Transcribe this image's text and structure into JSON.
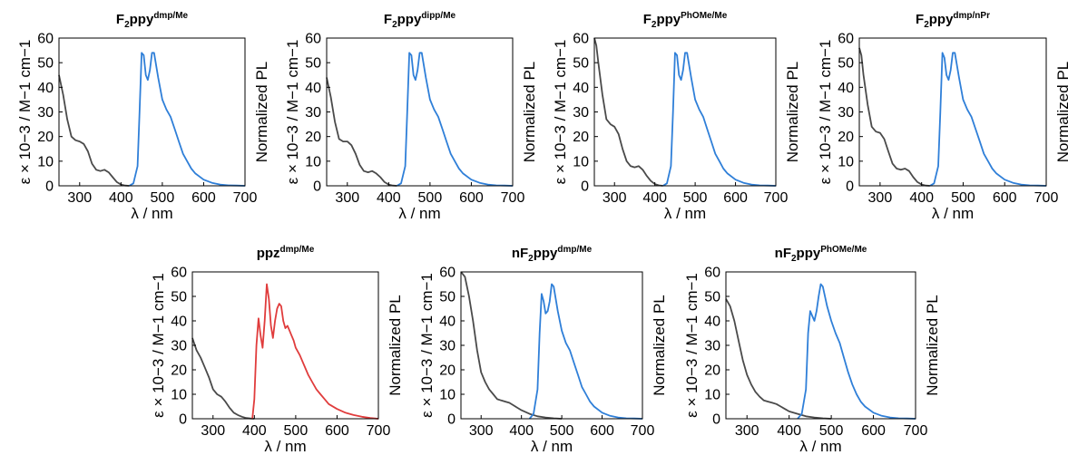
{
  "figure": {
    "x_ticks": [
      "300",
      "400",
      "500",
      "600",
      "700"
    ],
    "y_ticks": [
      "0",
      "10",
      "20",
      "30",
      "40",
      "50",
      "60"
    ],
    "xlabel": "λ / nm",
    "ylabel_left": "ε × 10−3 / M−1 cm−1",
    "ylabel_right": "Normalized PL"
  },
  "chart_data": [
    {
      "type": "line",
      "title": "F2ppydmp/Me",
      "title_parts": {
        "base": "F",
        "sub": "2",
        "mid": "ppy",
        "sup": "dmp/Me"
      },
      "xlabel": "λ / nm",
      "ylabel": "ε × 10−3 / M−1 cm−1",
      "ylabel_right": "Normalized PL",
      "xlim": [
        250,
        700
      ],
      "ylim": [
        0,
        60
      ],
      "x_ticks": [
        300,
        400,
        500,
        600,
        700
      ],
      "y_ticks": [
        0,
        10,
        20,
        30,
        40,
        50,
        60
      ],
      "colors": {
        "absorption": "#4a4a4a",
        "emission": "#2f7fd8"
      },
      "series": [
        {
          "x": [
            250,
            260,
            270,
            280,
            290,
            300,
            310,
            320,
            330,
            340,
            350,
            360,
            370,
            380,
            390,
            400,
            410,
            420
          ],
          "y": [
            45,
            37,
            27,
            20,
            18.5,
            18,
            17,
            14,
            9,
            6.5,
            6,
            6.5,
            5.5,
            3.5,
            1.5,
            0.5,
            0.1,
            0
          ]
        },
        {
          "x": [
            420,
            430,
            440,
            445,
            450,
            455,
            460,
            465,
            470,
            475,
            480,
            490,
            500,
            510,
            520,
            530,
            540,
            550,
            560,
            570,
            580,
            600,
            620,
            640,
            660,
            680,
            700
          ],
          "y": [
            0,
            1,
            8,
            30,
            54,
            53,
            45,
            43,
            47,
            54,
            54,
            44,
            35,
            31,
            28,
            23,
            18,
            13,
            10,
            7,
            5,
            2.5,
            1.2,
            0.5,
            0.2,
            0.1,
            0
          ]
        }
      ]
    },
    {
      "type": "line",
      "title": "F2ppydipp/Me",
      "title_parts": {
        "base": "F",
        "sub": "2",
        "mid": "ppy",
        "sup": "dipp/Me"
      },
      "xlabel": "λ / nm",
      "ylabel": "ε × 10−3 / M−1 cm−1",
      "ylabel_right": "Normalized PL",
      "xlim": [
        250,
        700
      ],
      "ylim": [
        0,
        60
      ],
      "x_ticks": [
        300,
        400,
        500,
        600,
        700
      ],
      "y_ticks": [
        0,
        10,
        20,
        30,
        40,
        50,
        60
      ],
      "colors": {
        "absorption": "#4a4a4a",
        "emission": "#2f7fd8"
      },
      "series": [
        {
          "x": [
            250,
            260,
            270,
            280,
            290,
            300,
            310,
            320,
            330,
            340,
            350,
            360,
            370,
            380,
            390,
            400,
            410,
            420
          ],
          "y": [
            44,
            36,
            26,
            19,
            18,
            18,
            16.5,
            13,
            8.5,
            6,
            5.5,
            6,
            5,
            3.5,
            1.5,
            0.5,
            0.1,
            0
          ]
        },
        {
          "x": [
            420,
            430,
            440,
            445,
            450,
            455,
            460,
            465,
            470,
            475,
            480,
            490,
            500,
            510,
            520,
            530,
            540,
            550,
            560,
            570,
            580,
            600,
            620,
            640,
            660,
            680,
            700
          ],
          "y": [
            0,
            1,
            8,
            30,
            54,
            53,
            45,
            43,
            47,
            54,
            54,
            44,
            35,
            31,
            28,
            23,
            18,
            13,
            10,
            7,
            5,
            2.5,
            1.2,
            0.5,
            0.2,
            0.1,
            0
          ]
        }
      ]
    },
    {
      "type": "line",
      "title": "F2ppyPhOMe/Me",
      "title_parts": {
        "base": "F",
        "sub": "2",
        "mid": "ppy",
        "sup": "PhOMe/Me"
      },
      "xlabel": "λ / nm",
      "ylabel": "ε × 10−3 / M−1 cm−1",
      "ylabel_right": "Normalized PL",
      "xlim": [
        250,
        700
      ],
      "ylim": [
        0,
        60
      ],
      "x_ticks": [
        300,
        400,
        500,
        600,
        700
      ],
      "y_ticks": [
        0,
        10,
        20,
        30,
        40,
        50,
        60
      ],
      "colors": {
        "absorption": "#4a4a4a",
        "emission": "#2f7fd8"
      },
      "series": [
        {
          "x": [
            250,
            255,
            260,
            270,
            280,
            290,
            300,
            310,
            320,
            330,
            340,
            350,
            360,
            370,
            380,
            390,
            400,
            410,
            420
          ],
          "y": [
            60,
            57,
            50,
            37,
            27,
            25,
            24,
            21,
            15,
            10,
            8,
            7.5,
            8,
            6.5,
            4,
            2,
            0.7,
            0.2,
            0
          ]
        },
        {
          "x": [
            420,
            430,
            440,
            445,
            450,
            455,
            460,
            465,
            470,
            475,
            480,
            490,
            500,
            510,
            520,
            530,
            540,
            550,
            560,
            570,
            580,
            600,
            620,
            640,
            660,
            680,
            700
          ],
          "y": [
            0,
            1,
            8,
            30,
            54,
            53,
            45,
            43,
            47,
            54,
            54,
            44,
            35,
            31,
            28,
            23,
            18,
            13,
            10,
            7,
            5,
            2.5,
            1.2,
            0.5,
            0.2,
            0.1,
            0
          ]
        }
      ]
    },
    {
      "type": "line",
      "title": "F2ppydmp/nPr",
      "title_parts": {
        "base": "F",
        "sub": "2",
        "mid": "ppy",
        "sup": "dmp/nPr"
      },
      "xlabel": "λ / nm",
      "ylabel": "ε × 10−3 / M−1 cm−1",
      "ylabel_right": "Normalized PL",
      "xlim": [
        250,
        700
      ],
      "ylim": [
        0,
        60
      ],
      "x_ticks": [
        300,
        400,
        500,
        600,
        700
      ],
      "y_ticks": [
        0,
        10,
        20,
        30,
        40,
        50,
        60
      ],
      "colors": {
        "absorption": "#4a4a4a",
        "emission": "#2f7fd8"
      },
      "series": [
        {
          "x": [
            250,
            255,
            260,
            270,
            280,
            290,
            300,
            310,
            320,
            330,
            340,
            350,
            360,
            370,
            380,
            390,
            400,
            410,
            420
          ],
          "y": [
            56,
            53,
            45,
            33,
            24,
            22,
            21.5,
            19,
            14,
            9,
            7,
            6.5,
            7,
            6,
            3.5,
            1.5,
            0.5,
            0.1,
            0
          ]
        },
        {
          "x": [
            420,
            430,
            440,
            445,
            450,
            455,
            460,
            465,
            470,
            475,
            480,
            490,
            500,
            510,
            520,
            530,
            540,
            550,
            560,
            570,
            580,
            600,
            620,
            640,
            660,
            680,
            700
          ],
          "y": [
            0,
            1,
            8,
            30,
            54,
            52,
            45,
            43,
            47,
            54,
            54,
            44,
            35,
            31,
            28,
            23,
            18,
            13,
            10,
            7,
            5,
            2.5,
            1.2,
            0.5,
            0.2,
            0.1,
            0
          ]
        }
      ]
    },
    {
      "type": "line",
      "title": "ppzdmp/Me",
      "title_parts": {
        "base": "ppz",
        "sub": "",
        "mid": "",
        "sup": "dmp/Me"
      },
      "xlabel": "λ / nm",
      "ylabel": "ε × 10−3 / M−1 cm−1",
      "ylabel_right": "Normalized PL",
      "xlim": [
        250,
        700
      ],
      "ylim": [
        0,
        60
      ],
      "x_ticks": [
        300,
        400,
        500,
        600,
        700
      ],
      "y_ticks": [
        0,
        10,
        20,
        30,
        40,
        50,
        60
      ],
      "colors": {
        "absorption": "#4a4a4a",
        "emission": "#e03c3c"
      },
      "series": [
        {
          "x": [
            250,
            260,
            270,
            280,
            290,
            300,
            310,
            320,
            330,
            340,
            350,
            360,
            370,
            380,
            390,
            400
          ],
          "y": [
            33,
            28,
            25,
            21,
            17,
            12,
            10,
            9,
            7,
            4.5,
            2.5,
            1.5,
            0.8,
            0.3,
            0.1,
            0
          ]
        },
        {
          "x": [
            395,
            400,
            405,
            410,
            415,
            420,
            425,
            430,
            435,
            440,
            445,
            450,
            455,
            460,
            465,
            470,
            475,
            480,
            485,
            490,
            495,
            500,
            510,
            520,
            530,
            540,
            550,
            560,
            570,
            580,
            600,
            620,
            640,
            660,
            680,
            700
          ],
          "y": [
            0,
            8,
            30,
            41,
            34,
            29,
            40,
            55,
            49,
            38,
            33,
            40,
            45,
            47,
            46,
            40,
            37,
            38,
            36,
            34,
            32,
            29,
            26,
            22,
            18,
            15,
            12,
            10,
            8,
            6,
            4,
            2.5,
            1.5,
            0.8,
            0.3,
            0
          ]
        }
      ]
    },
    {
      "type": "line",
      "title": "nF2ppydmp/Me",
      "title_parts": {
        "base": "nF",
        "sub": "2",
        "mid": "ppy",
        "sup": "dmp/Me"
      },
      "xlabel": "λ / nm",
      "ylabel": "ε × 10−3 / M−1 cm−1",
      "ylabel_right": "Normalized PL",
      "xlim": [
        250,
        700
      ],
      "ylim": [
        0,
        60
      ],
      "x_ticks": [
        300,
        400,
        500,
        600,
        700
      ],
      "y_ticks": [
        0,
        10,
        20,
        30,
        40,
        50,
        60
      ],
      "colors": {
        "absorption": "#4a4a4a",
        "emission": "#2f7fd8"
      },
      "series": [
        {
          "x": [
            250,
            260,
            270,
            280,
            290,
            300,
            310,
            320,
            330,
            340,
            350,
            360,
            370,
            380,
            390,
            400,
            420,
            440,
            460,
            480,
            500
          ],
          "y": [
            60,
            58,
            50,
            40,
            28,
            19,
            15,
            12,
            10,
            8,
            7.5,
            7,
            6.5,
            5.5,
            4.5,
            3.5,
            2,
            1,
            0.5,
            0.2,
            0
          ]
        },
        {
          "x": [
            420,
            430,
            440,
            445,
            450,
            455,
            460,
            465,
            470,
            475,
            480,
            490,
            500,
            510,
            520,
            530,
            540,
            550,
            560,
            570,
            580,
            600,
            620,
            640,
            660,
            680,
            700
          ],
          "y": [
            0,
            2,
            12,
            35,
            51,
            48,
            43,
            44,
            48,
            55,
            54,
            44,
            36,
            31,
            28,
            23,
            18,
            13,
            10,
            7,
            5,
            2.5,
            1.2,
            0.5,
            0.2,
            0.1,
            0
          ]
        }
      ]
    },
    {
      "type": "line",
      "title": "nF2ppyPhOMe/Me",
      "title_parts": {
        "base": "nF",
        "sub": "2",
        "mid": "ppy",
        "sup": "PhOMe/Me"
      },
      "xlabel": "λ / nm",
      "ylabel": "ε × 10−3 / M−1 cm−1",
      "ylabel_right": "Normalized PL",
      "xlim": [
        250,
        700
      ],
      "ylim": [
        0,
        60
      ],
      "x_ticks": [
        300,
        400,
        500,
        600,
        700
      ],
      "y_ticks": [
        0,
        10,
        20,
        30,
        40,
        50,
        60
      ],
      "colors": {
        "absorption": "#4a4a4a",
        "emission": "#2f7fd8"
      },
      "series": [
        {
          "x": [
            250,
            260,
            270,
            280,
            290,
            300,
            310,
            320,
            330,
            340,
            350,
            360,
            370,
            380,
            390,
            400,
            420,
            440,
            460,
            480,
            500
          ],
          "y": [
            49,
            46,
            40,
            32,
            24,
            18,
            14,
            11,
            9,
            7.5,
            7,
            6.5,
            6,
            5,
            4,
            3,
            2,
            1,
            0.5,
            0.2,
            0
          ]
        },
        {
          "x": [
            420,
            430,
            440,
            445,
            450,
            455,
            460,
            465,
            470,
            475,
            480,
            490,
            500,
            510,
            520,
            530,
            540,
            550,
            560,
            570,
            580,
            600,
            620,
            640,
            660,
            680,
            700
          ],
          "y": [
            0,
            2,
            12,
            35,
            44,
            42,
            40,
            44,
            50,
            55,
            54,
            46,
            40,
            35,
            31,
            25,
            19,
            14,
            10,
            7,
            5,
            2.5,
            1.2,
            0.5,
            0.2,
            0.1,
            0
          ]
        }
      ]
    }
  ]
}
